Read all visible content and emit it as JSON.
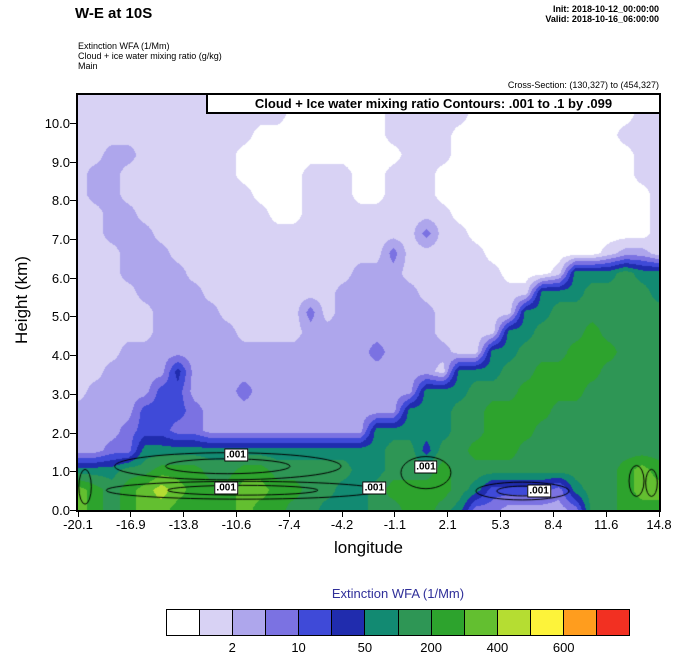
{
  "header": {
    "title": "W-E at 10S",
    "init_line": "Init: 2018-10-12_00:00:00",
    "valid_line": "Valid: 2018-10-16_06:00:00",
    "field_line1": "Extinction WFA  (1/Mm)",
    "field_line2": "Cloud + ice water mixing ratio   (g/kg)",
    "field_line3": "Main",
    "cross_section": "Cross-Section: (130,327) to (454,327)"
  },
  "chart_data": {
    "type": "filled-contour-cross-section",
    "title": "Cloud + Ice water mixing ratio Contours: .001 to .1 by .099",
    "xlabel": "longitude",
    "ylabel": "Height (km)",
    "xlim": [
      -20.1,
      14.8
    ],
    "ylim": [
      0,
      10.72
    ],
    "x_ticks": [
      "-20.1",
      "-16.9",
      "-13.8",
      "-10.6",
      "-7.4",
      "-4.2",
      "-1.1",
      "2.1",
      "5.3",
      "8.4",
      "11.6",
      "14.8"
    ],
    "y_ticks": [
      "0.0",
      "1.0",
      "2.0",
      "3.0",
      "4.0",
      "5.0",
      "6.0",
      "7.0",
      "8.0",
      "9.0",
      "10.0"
    ],
    "legend": {
      "title": "Extinction WFA  (1/Mm)",
      "title_color": "#2f2f99",
      "colors": [
        "#ffffff",
        "#d8d2f4",
        "#aea6ec",
        "#7b72e2",
        "#3f4ad8",
        "#202cae",
        "#128a72",
        "#2e9655",
        "#2da32d",
        "#63bf30",
        "#b5dd32",
        "#fdf33a",
        "#ff9d1e",
        "#f23022"
      ],
      "tick_labels": [
        "2",
        "10",
        "50",
        "200",
        "400",
        "600"
      ],
      "tick_boundary_indices": [
        2,
        4,
        6,
        8,
        10,
        12
      ],
      "approx_band_edges_1perMm": [
        0,
        1,
        2,
        5,
        10,
        20,
        50,
        100,
        200,
        300,
        400,
        500,
        600,
        800
      ]
    },
    "contour_levels_gkg": [
      0.001,
      0.1
    ],
    "contour_labels": [
      {
        "lon": -10.6,
        "km": 1.42,
        "text": ".001"
      },
      {
        "lon": -11.2,
        "km": 0.58,
        "text": ".001"
      },
      {
        "lon": -2.3,
        "km": 0.58,
        "text": ".001"
      },
      {
        "lon": 0.8,
        "km": 1.12,
        "text": ".001"
      },
      {
        "lon": 7.6,
        "km": 0.48,
        "text": ".001"
      }
    ],
    "contour_outlines": [
      {
        "lon0": -17.9,
        "lon1": -4.3,
        "km0": 0.78,
        "km1": 1.48
      },
      {
        "lon0": -18.4,
        "lon1": -2.0,
        "km0": 0.28,
        "km1": 0.74
      },
      {
        "lon0": -0.7,
        "lon1": 2.3,
        "km0": 0.55,
        "km1": 1.38
      },
      {
        "lon0": 3.8,
        "lon1": 9.4,
        "km0": 0.26,
        "km1": 0.72
      },
      {
        "lon0": 13.0,
        "lon1": 13.9,
        "km0": 0.35,
        "km1": 1.15
      },
      {
        "lon0": 14.0,
        "lon1": 14.7,
        "km0": 0.35,
        "km1": 1.05
      },
      {
        "lon0": -20.05,
        "lon1": -19.3,
        "km0": 0.15,
        "km1": 1.05
      }
    ],
    "grid": {
      "note": "Extinction WFA color-band indices (index into legend.colors). Rows top-down covering ylim 10.72->0 km; columns left-right covering lon -20.1->14.8.",
      "nx": 36,
      "ny": 22,
      "values": [
        [
          1,
          1,
          1,
          1,
          1,
          1,
          1,
          1,
          1,
          1,
          1,
          1,
          1,
          1,
          0,
          0,
          0,
          0,
          0,
          1,
          1,
          1,
          1,
          1,
          1,
          0,
          0,
          0,
          0,
          0,
          0,
          0,
          0,
          0,
          1,
          1
        ],
        [
          1,
          1,
          1,
          1,
          1,
          1,
          1,
          1,
          1,
          1,
          1,
          1,
          1,
          0,
          0,
          0,
          0,
          0,
          0,
          1,
          1,
          1,
          1,
          1,
          0,
          0,
          0,
          0,
          0,
          0,
          0,
          0,
          0,
          0,
          1,
          1
        ],
        [
          1,
          1,
          1,
          1,
          1,
          1,
          1,
          1,
          1,
          1,
          1,
          0,
          0,
          0,
          0,
          0,
          0,
          0,
          0,
          1,
          1,
          1,
          1,
          0,
          0,
          0,
          0,
          0,
          0,
          0,
          0,
          0,
          0,
          1,
          1,
          1
        ],
        [
          1,
          1,
          2,
          2,
          1,
          1,
          1,
          1,
          1,
          1,
          0,
          0,
          0,
          0,
          0,
          0,
          0,
          0,
          0,
          0,
          1,
          1,
          1,
          0,
          0,
          0,
          0,
          0,
          0,
          0,
          0,
          0,
          0,
          0,
          1,
          1
        ],
        [
          1,
          2,
          2,
          1,
          1,
          1,
          1,
          1,
          1,
          1,
          0,
          0,
          0,
          0,
          1,
          1,
          1,
          0,
          0,
          1,
          1,
          1,
          0,
          0,
          0,
          0,
          0,
          0,
          0,
          0,
          0,
          0,
          0,
          0,
          1,
          1
        ],
        [
          1,
          2,
          2,
          1,
          1,
          1,
          1,
          1,
          1,
          1,
          1,
          0,
          0,
          0,
          1,
          1,
          1,
          0,
          0,
          1,
          1,
          1,
          0,
          0,
          0,
          0,
          0,
          0,
          0,
          0,
          0,
          0,
          0,
          0,
          0,
          1
        ],
        [
          1,
          1,
          2,
          2,
          1,
          1,
          1,
          1,
          1,
          1,
          1,
          1,
          0,
          0,
          1,
          1,
          1,
          1,
          1,
          1,
          1,
          1,
          1,
          0,
          0,
          0,
          0,
          0,
          0,
          0,
          0,
          0,
          0,
          0,
          0,
          1
        ],
        [
          1,
          1,
          2,
          2,
          2,
          1,
          1,
          1,
          1,
          1,
          1,
          1,
          1,
          1,
          1,
          1,
          1,
          1,
          1,
          1,
          1,
          3,
          1,
          1,
          0,
          0,
          0,
          0,
          0,
          0,
          0,
          0,
          0,
          0,
          0,
          1
        ],
        [
          1,
          1,
          1,
          2,
          2,
          2,
          1,
          1,
          1,
          1,
          1,
          1,
          1,
          1,
          1,
          1,
          1,
          1,
          1,
          3,
          1,
          1,
          1,
          1,
          1,
          0,
          0,
          0,
          0,
          0,
          0,
          0,
          1,
          2,
          2,
          1
        ],
        [
          1,
          1,
          1,
          2,
          2,
          2,
          2,
          1,
          1,
          1,
          1,
          1,
          1,
          1,
          1,
          1,
          1,
          2,
          2,
          2,
          1,
          1,
          1,
          1,
          1,
          1,
          0,
          0,
          0,
          1,
          6,
          6,
          6,
          7,
          6,
          6
        ],
        [
          1,
          1,
          1,
          1,
          2,
          2,
          2,
          2,
          1,
          1,
          1,
          1,
          1,
          1,
          1,
          1,
          2,
          2,
          2,
          2,
          2,
          1,
          1,
          1,
          1,
          1,
          1,
          1,
          6,
          6,
          6,
          7,
          7,
          7,
          7,
          6
        ],
        [
          1,
          1,
          1,
          1,
          1,
          2,
          2,
          2,
          2,
          1,
          1,
          1,
          1,
          1,
          3,
          1,
          2,
          2,
          2,
          2,
          2,
          2,
          1,
          1,
          1,
          1,
          1,
          6,
          6,
          7,
          7,
          7,
          7,
          7,
          7,
          7
        ],
        [
          1,
          1,
          1,
          1,
          1,
          2,
          2,
          2,
          2,
          2,
          1,
          1,
          1,
          1,
          2,
          2,
          2,
          2,
          2,
          2,
          2,
          2,
          1,
          1,
          1,
          1,
          6,
          6,
          7,
          7,
          7,
          8,
          7,
          7,
          7,
          7
        ],
        [
          1,
          1,
          1,
          2,
          2,
          2,
          2,
          2,
          2,
          2,
          2,
          2,
          2,
          2,
          2,
          2,
          2,
          2,
          3,
          2,
          2,
          2,
          2,
          1,
          1,
          6,
          6,
          7,
          7,
          7,
          8,
          8,
          8,
          7,
          7,
          7
        ],
        [
          1,
          1,
          2,
          2,
          2,
          2,
          5,
          2,
          2,
          2,
          2,
          2,
          2,
          2,
          2,
          2,
          2,
          2,
          2,
          2,
          2,
          2,
          1,
          6,
          6,
          6,
          7,
          7,
          8,
          8,
          8,
          8,
          7,
          7,
          7,
          7
        ],
        [
          1,
          2,
          2,
          2,
          2,
          4,
          4,
          2,
          2,
          2,
          3,
          2,
          2,
          2,
          2,
          2,
          2,
          2,
          2,
          2,
          2,
          6,
          6,
          6,
          7,
          7,
          7,
          8,
          8,
          8,
          8,
          7,
          7,
          7,
          7,
          7
        ],
        [
          2,
          2,
          2,
          2,
          4,
          4,
          4,
          3,
          2,
          2,
          2,
          2,
          2,
          2,
          2,
          2,
          2,
          2,
          2,
          2,
          6,
          6,
          6,
          7,
          7,
          8,
          8,
          8,
          8,
          7,
          7,
          7,
          7,
          7,
          7,
          7
        ],
        [
          2,
          2,
          2,
          3,
          4,
          4,
          3,
          3,
          2,
          2,
          2,
          2,
          2,
          2,
          2,
          2,
          2,
          2,
          6,
          6,
          6,
          6,
          6,
          7,
          7,
          8,
          8,
          8,
          7,
          7,
          7,
          7,
          7,
          7,
          7,
          7
        ],
        [
          2,
          2,
          3,
          3,
          6,
          6,
          6,
          6,
          6,
          6,
          6,
          6,
          6,
          6,
          6,
          6,
          6,
          6,
          6,
          7,
          7,
          5,
          7,
          7,
          8,
          8,
          8,
          7,
          7,
          7,
          7,
          7,
          7,
          7,
          7,
          7
        ],
        [
          6,
          6,
          6,
          7,
          7,
          8,
          8,
          8,
          7,
          7,
          8,
          8,
          7,
          7,
          7,
          7,
          7,
          6,
          6,
          7,
          7,
          7,
          8,
          7,
          7,
          7,
          7,
          7,
          7,
          7,
          7,
          7,
          7,
          8,
          9,
          8
        ],
        [
          9,
          8,
          7,
          8,
          9,
          10,
          9,
          8,
          8,
          8,
          9,
          9,
          8,
          8,
          7,
          7,
          6,
          6,
          7,
          8,
          8,
          8,
          8,
          7,
          6,
          4,
          4,
          4,
          4,
          3,
          6,
          7,
          7,
          8,
          9,
          9
        ],
        [
          9,
          8,
          7,
          8,
          9,
          9,
          8,
          8,
          8,
          8,
          9,
          8,
          8,
          7,
          7,
          6,
          6,
          6,
          7,
          7,
          8,
          8,
          7,
          6,
          3,
          3,
          2,
          2,
          2,
          2,
          3,
          7,
          7,
          8,
          8,
          8
        ]
      ]
    }
  }
}
